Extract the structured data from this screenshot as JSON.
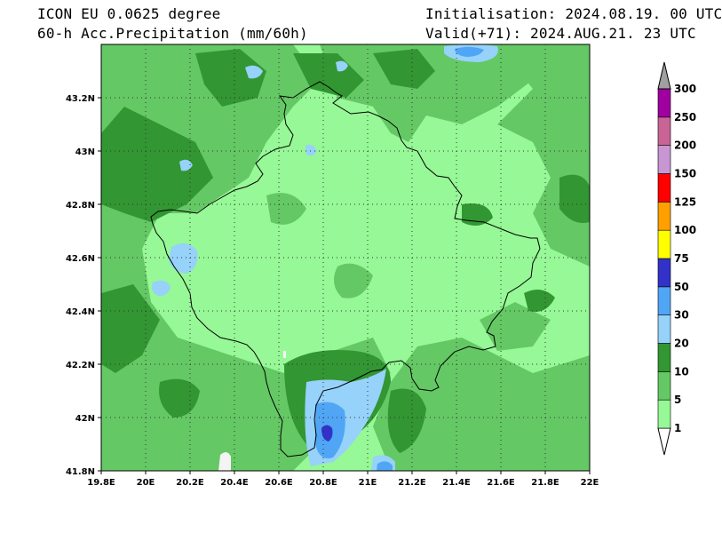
{
  "header": {
    "model": "ICON EU 0.0625 degree",
    "field": "60-h Acc.Precipitation (mm/60h)",
    "init": "Initialisation: 2024.08.19. 00 UTC",
    "valid": "Valid(+71): 2024.AUG.21. 23 UTC"
  },
  "map": {
    "lon_range": [
      19.8,
      22.0
    ],
    "lat_range": [
      41.8,
      43.4
    ],
    "lon_ticks": [
      {
        "v": 19.8,
        "label": "19.8E"
      },
      {
        "v": 20.0,
        "label": "20E"
      },
      {
        "v": 20.2,
        "label": "20.2E"
      },
      {
        "v": 20.4,
        "label": "20.4E"
      },
      {
        "v": 20.6,
        "label": "20.6E"
      },
      {
        "v": 20.8,
        "label": "20.8E"
      },
      {
        "v": 21.0,
        "label": "21E"
      },
      {
        "v": 21.2,
        "label": "21.2E"
      },
      {
        "v": 21.4,
        "label": "21.4E"
      },
      {
        "v": 21.6,
        "label": "21.6E"
      },
      {
        "v": 21.8,
        "label": "21.8E"
      },
      {
        "v": 22.0,
        "label": "22E"
      }
    ],
    "lat_ticks": [
      {
        "v": 41.8,
        "label": "41.8N"
      },
      {
        "v": 42.0,
        "label": "42N"
      },
      {
        "v": 42.2,
        "label": "42.2N"
      },
      {
        "v": 42.4,
        "label": "42.4N"
      },
      {
        "v": 42.6,
        "label": "42.6N"
      },
      {
        "v": 42.8,
        "label": "42.8N"
      },
      {
        "v": 43.0,
        "label": "43N"
      },
      {
        "v": 43.2,
        "label": "43.2N"
      }
    ],
    "grid": "dotted",
    "dominant_class": "1-5 mm"
  },
  "colorbar": {
    "levels": [
      "1",
      "5",
      "10",
      "20",
      "30",
      "50",
      "75",
      "100",
      "125",
      "150",
      "200",
      "250",
      "300"
    ],
    "colors": [
      "#ffffff",
      "#96f896",
      "#64c864",
      "#329632",
      "#96d2fa",
      "#50a5f5",
      "#3232c8",
      "#ffff00",
      "#ffa000",
      "#ff0000",
      "#c896d2",
      "#c86496",
      "#a000a0",
      "#a0a0a0"
    ]
  },
  "legend_colors": {
    "c5": "#96f896",
    "c10": "#64c864",
    "c20": "#329632",
    "c30": "#96d2fa",
    "c50": "#50a5f5",
    "c75": "#3232c8",
    "white": "#f4f4f4",
    "border": "#000000"
  }
}
